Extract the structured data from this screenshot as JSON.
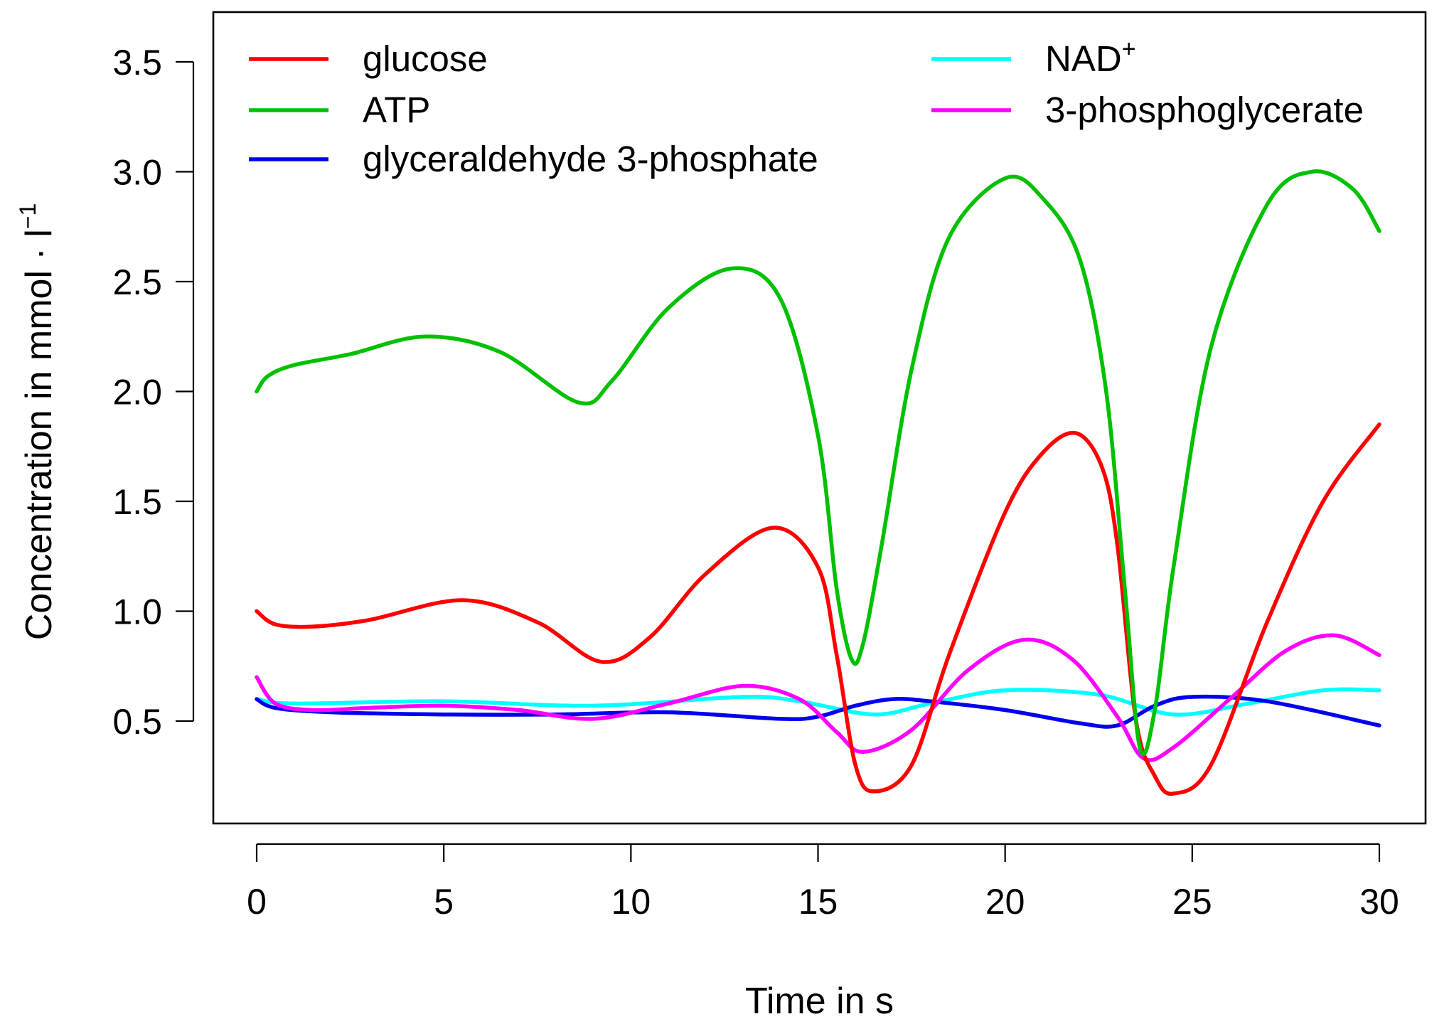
{
  "chart_data": {
    "type": "line",
    "title": "",
    "xlabel": "Time in s",
    "ylabel": "Concentration in mmol",
    "ylabel_unit": "l",
    "ylabel_unit_exponent": "−1",
    "xlim": [
      0,
      30
    ],
    "ylim": [
      0.1,
      3.7
    ],
    "xticks": [
      0,
      5,
      10,
      15,
      20,
      25,
      30
    ],
    "xtick_labels": [
      "0",
      "5",
      "10",
      "15",
      "20",
      "25",
      "30"
    ],
    "yticks": [
      0.5,
      1.0,
      1.5,
      2.0,
      2.5,
      3.0,
      3.5
    ],
    "ytick_labels": [
      "0.5",
      "1.0",
      "1.5",
      "2.0",
      "2.5",
      "3.0",
      "3.5"
    ],
    "grid": false,
    "legend_position": "top",
    "series": [
      {
        "name": "glucose",
        "color": "#ff0000",
        "x": [
          0,
          0.5,
          1.5,
          3,
          5.5,
          7.5,
          9.2,
          10.5,
          12,
          13.8,
          15,
          15.5,
          16,
          16.5,
          17.5,
          18.5,
          20,
          21,
          21.9,
          22.6,
          23,
          23.5,
          24,
          24.5,
          25.5,
          27,
          28.5,
          30
        ],
        "y": [
          1.0,
          0.94,
          0.93,
          0.96,
          1.05,
          0.95,
          0.77,
          0.88,
          1.17,
          1.38,
          1.2,
          0.8,
          0.3,
          0.18,
          0.3,
          0.8,
          1.45,
          1.72,
          1.81,
          1.65,
          1.3,
          0.5,
          0.25,
          0.17,
          0.3,
          0.95,
          1.5,
          1.85
        ]
      },
      {
        "name": "ATP",
        "color": "#00c000",
        "x": [
          0,
          0.3,
          1,
          2.5,
          4.5,
          6.5,
          8.6,
          9.5,
          11,
          12.7,
          14,
          15,
          15.5,
          15.9,
          16.2,
          16.7,
          17.5,
          18.5,
          20,
          21,
          22,
          22.7,
          23.2,
          23.6,
          24,
          24.5,
          25.5,
          27,
          28.2,
          29.3,
          30
        ],
        "y": [
          2.0,
          2.07,
          2.12,
          2.17,
          2.25,
          2.18,
          1.95,
          2.05,
          2.38,
          2.56,
          2.42,
          1.8,
          1.1,
          0.78,
          0.85,
          1.3,
          2.1,
          2.7,
          2.97,
          2.88,
          2.6,
          2.0,
          1.1,
          0.38,
          0.55,
          1.2,
          2.2,
          2.85,
          3.0,
          2.92,
          2.73
        ]
      },
      {
        "name": "glyceraldehyde 3-phosphate",
        "color": "#0000ee",
        "x": [
          0,
          0.5,
          2,
          5,
          8,
          11,
          14,
          15,
          16,
          17,
          18,
          20,
          22,
          23,
          24,
          25,
          27,
          30
        ],
        "y": [
          0.6,
          0.56,
          0.54,
          0.53,
          0.53,
          0.54,
          0.51,
          0.52,
          0.57,
          0.6,
          0.59,
          0.55,
          0.49,
          0.48,
          0.57,
          0.61,
          0.59,
          0.48
        ]
      },
      {
        "name": "NAD+",
        "color": "#00ffff",
        "x": [
          0,
          1,
          5,
          9,
          13,
          14.5,
          16.5,
          18,
          20,
          22.5,
          24.5,
          26.5,
          28.5,
          30
        ],
        "y": [
          0.6,
          0.58,
          0.59,
          0.57,
          0.61,
          0.59,
          0.53,
          0.58,
          0.64,
          0.62,
          0.53,
          0.58,
          0.64,
          0.64
        ]
      },
      {
        "name": "3-phosphoglycerate",
        "color": "#ff00ff",
        "x": [
          0,
          0.5,
          1.5,
          3,
          5,
          7,
          9,
          11,
          13,
          14.5,
          15.5,
          16.2,
          17.5,
          19,
          20.5,
          21.8,
          23,
          23.7,
          24.5,
          26,
          27.5,
          28.8,
          30
        ],
        "y": [
          0.7,
          0.58,
          0.55,
          0.56,
          0.57,
          0.55,
          0.51,
          0.58,
          0.66,
          0.6,
          0.45,
          0.36,
          0.46,
          0.73,
          0.87,
          0.78,
          0.52,
          0.33,
          0.38,
          0.6,
          0.82,
          0.89,
          0.8
        ]
      }
    ]
  }
}
